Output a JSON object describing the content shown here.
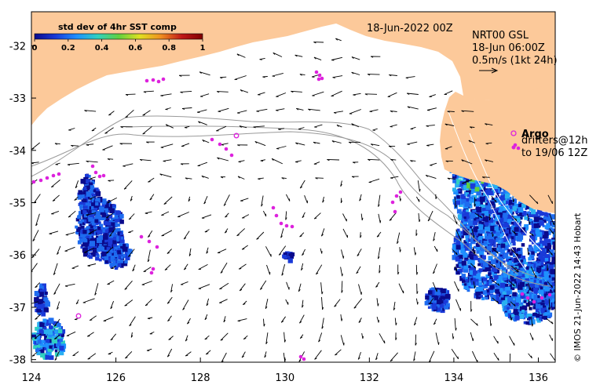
{
  "colors": {
    "land": "#fcc99a",
    "ocean": "#ffffff",
    "argo": "#dd22dd",
    "arrow": "#000000",
    "contour": "#9a9a9a",
    "colorbar": [
      "#0a0a8c",
      "#1a3ad8",
      "#1e90ff",
      "#30d0c0",
      "#60d040",
      "#e0e020",
      "#f09020",
      "#c01818",
      "#800000"
    ]
  },
  "legend": {
    "title": "std dev of 4hr SST comp",
    "ticks": [
      "0",
      "0.2",
      "0.4",
      "0.6",
      "0.8",
      "1"
    ]
  },
  "map": {
    "date_label": "18-Jun-2022 00Z",
    "product": "NRT00 GSL",
    "current_time": "18-Jun 06:00Z",
    "scale_label": "0.5m/s (1kt 24h)",
    "argo_label": "Argo",
    "drifters_line1": "drifters@12h",
    "drifters_line2": "to 19/06 12Z",
    "credit": "© IMOS 21-Jun-2022 14:43 Hobart",
    "lon_ticks": [
      "124",
      "126",
      "128",
      "130",
      "132",
      "134",
      "136"
    ],
    "lat_ticks": [
      "-32",
      "-33",
      "-34",
      "-35",
      "-36",
      "-37",
      "-38"
    ]
  },
  "icons": {
    "argo_marker": "magenta-circle-icon",
    "drifter_marker": "magenta-dot-icon",
    "scale_arrow": "arrow-right-icon"
  }
}
